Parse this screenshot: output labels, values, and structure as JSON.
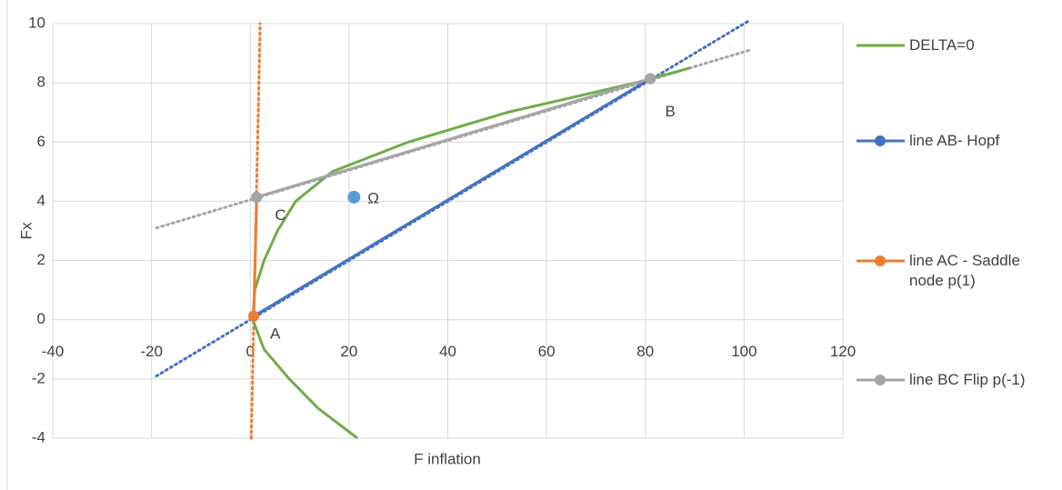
{
  "chart_data": {
    "type": "scatter",
    "x_label": "F inflation",
    "y_label": "Fx",
    "xlim": [
      -40,
      120
    ],
    "xticks": [
      -40,
      -20,
      0,
      20,
      40,
      60,
      80,
      100,
      120
    ],
    "ylim": [
      -4,
      10
    ],
    "yticks": [
      -4,
      -2,
      0,
      2,
      4,
      6,
      8,
      10
    ],
    "grid": true,
    "legend": "right",
    "series": [
      {
        "name": "DELTA=0",
        "color": "#70ad47",
        "marker": false,
        "x": [
          21.7,
          13.8,
          7.9,
          2.8,
          0.5,
          0.9,
          2.8,
          5.5,
          9.2,
          16.6,
          32,
          52,
          78,
          89
        ],
        "values": [
          -4,
          -3,
          -2,
          -1,
          0,
          1,
          2,
          3,
          4,
          5,
          6,
          7,
          8,
          8.5
        ]
      },
      {
        "name": "line AB- Hopf",
        "color": "#4472c4",
        "marker": true,
        "x": [
          0.7,
          81
        ],
        "values": [
          0.12,
          8.14
        ],
        "trend": {
          "x": [
            -19,
            101
          ],
          "values": [
            -1.9,
            10.1
          ]
        }
      },
      {
        "name": "line AC - Saddle node p(1)",
        "color": "#ed7d31",
        "marker": true,
        "x": [
          0.7,
          1.3
        ],
        "values": [
          0.12,
          4.14
        ],
        "trend": {
          "x": [
            0.2,
            2
          ],
          "values": [
            -4,
            10
          ]
        }
      },
      {
        "name": "line BC Flip p(-1)",
        "color": "#a5a5a5",
        "marker": true,
        "x": [
          1.3,
          81
        ],
        "values": [
          4.14,
          8.14
        ],
        "trend": {
          "x": [
            -19,
            101
          ],
          "values": [
            3.1,
            9.1
          ]
        }
      }
    ],
    "points": [
      {
        "label": "Ω",
        "color": "#5b9bd5",
        "x": 21,
        "y": 4.14
      }
    ],
    "annotations": [
      {
        "text": "A",
        "x": 4,
        "y": -0.5
      },
      {
        "text": "B",
        "x": 84,
        "y": 7
      },
      {
        "text": "C",
        "x": 5,
        "y": 3.5
      }
    ]
  }
}
